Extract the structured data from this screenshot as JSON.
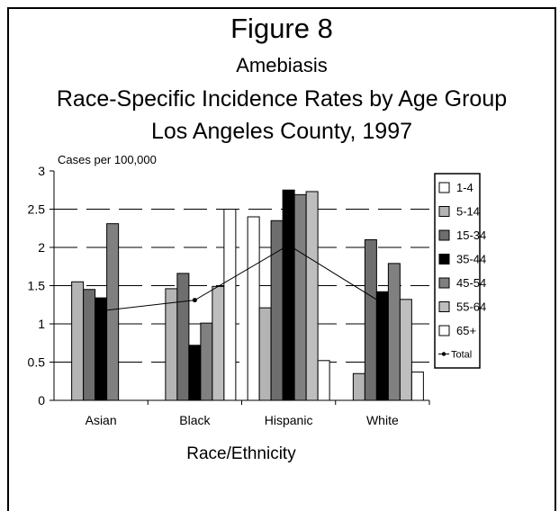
{
  "header": {
    "figure": "Figure 8",
    "disease": "Amebiasis",
    "subtitle": "Race-Specific Incidence Rates by Age Group",
    "location": "Los Angeles County, 1997"
  },
  "chart_data": {
    "type": "bar",
    "ylabel": "Cases per 100,000",
    "xlabel": "Race/Ethnicity",
    "ylim": [
      0,
      3
    ],
    "yticks": [
      "0",
      "0.5",
      "1",
      "1.5",
      "2",
      "2.5",
      "3"
    ],
    "categories": [
      "Asian",
      "Black",
      "Hispanic",
      "White"
    ],
    "series": [
      {
        "name": "1-4",
        "color": "#ffffff",
        "values": [
          0,
          0,
          2.4,
          0
        ]
      },
      {
        "name": "5-14",
        "color": "#b4b4b4",
        "values": [
          1.55,
          1.46,
          1.21,
          0.35
        ]
      },
      {
        "name": "15-34",
        "color": "#6e6e6e",
        "values": [
          1.45,
          1.66,
          2.35,
          2.1
        ]
      },
      {
        "name": "35-44",
        "color": "#000000",
        "values": [
          1.34,
          0.72,
          2.75,
          1.42
        ]
      },
      {
        "name": "45-54",
        "color": "#808080",
        "values": [
          2.31,
          1.01,
          2.69,
          1.79
        ]
      },
      {
        "name": "55-64",
        "color": "#bebebe",
        "values": [
          0,
          1.49,
          2.73,
          1.32
        ]
      },
      {
        "name": "65+",
        "color": "#ffffff",
        "values": [
          0,
          2.5,
          0.52,
          0.37
        ]
      }
    ],
    "total": {
      "name": "Total",
      "values": [
        1.17,
        1.31,
        2.03,
        1.27
      ]
    },
    "grid": "dashed horizontal",
    "legend": "right"
  }
}
